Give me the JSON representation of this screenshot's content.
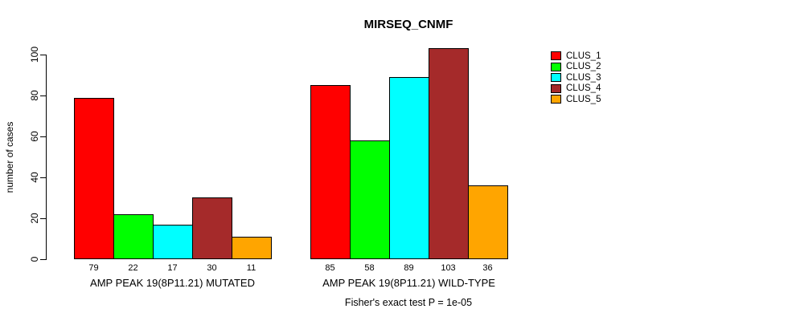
{
  "title": "MIRSEQ_CNMF",
  "footnote": "Fisher's exact test P = 1e-05",
  "chart_data": {
    "type": "bar",
    "title": "MIRSEQ_CNMF",
    "xlabel": "",
    "ylabel": "number of cases",
    "ylim": [
      0,
      100
    ],
    "yticks": [
      0,
      20,
      40,
      60,
      80,
      100
    ],
    "grid": false,
    "legend_position": "right-outside",
    "categories": [
      "AMP PEAK 19(8P11.21) MUTATED",
      "AMP PEAK 19(8P11.21) WILD-TYPE"
    ],
    "series": [
      {
        "name": "CLUS_1",
        "color": "#FF0000",
        "values": [
          79,
          85
        ]
      },
      {
        "name": "CLUS_2",
        "color": "#00FF00",
        "values": [
          22,
          58
        ]
      },
      {
        "name": "CLUS_3",
        "color": "#00FFFF",
        "values": [
          17,
          89
        ]
      },
      {
        "name": "CLUS_4",
        "color": "#A52A2A",
        "values": [
          30,
          103
        ]
      },
      {
        "name": "CLUS_5",
        "color": "#FFA500",
        "values": [
          11,
          36
        ]
      }
    ],
    "bar_value_labels": [
      [
        79,
        22,
        17,
        30,
        11
      ],
      [
        85,
        58,
        89,
        103,
        36
      ]
    ],
    "annotation": "Fisher's exact test P = 1e-05"
  }
}
